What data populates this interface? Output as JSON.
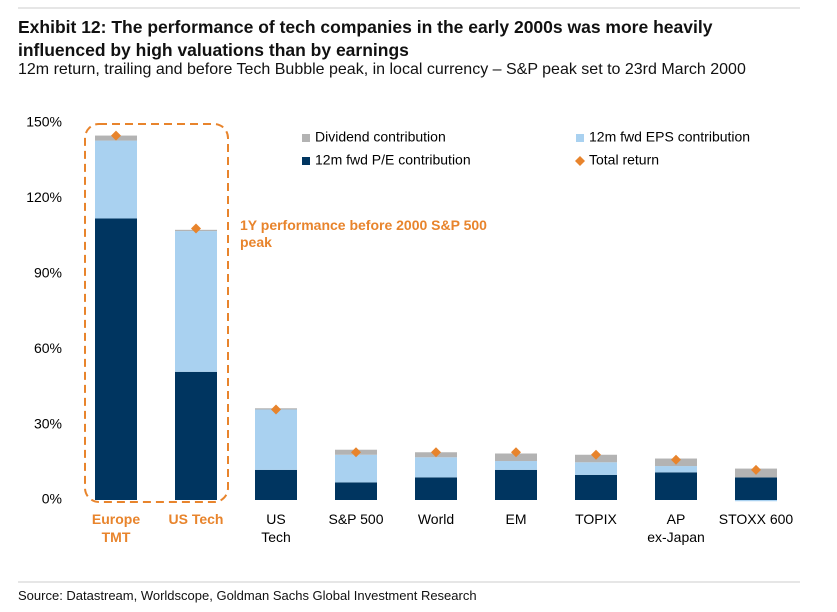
{
  "chart_data": {
    "type": "stacked_bar",
    "title": "Exhibit 12: The performance of tech companies in the early 2000s was more heavily influenced by high valuations than by earnings",
    "subtitle": "12m return, trailing and before Tech Bubble peak, in local currency – S&P peak set to 23rd March 2000",
    "source": "Source: Datastream, Worldscope, Goldman Sachs Global Investment Research",
    "annotation": "1Y performance before 2000 S&P 500 peak",
    "categories": [
      "Europe\nTMT",
      "US Tech",
      "US\nTech",
      "S&P 500",
      "World",
      "EM",
      "TOPIX",
      "AP\nex-Japan",
      "STOXX 600"
    ],
    "category_colors": [
      "#e8842c",
      "#e8842c",
      "#000000",
      "#000000",
      "#000000",
      "#000000",
      "#000000",
      "#000000",
      "#000000"
    ],
    "series": [
      {
        "name": "12m fwd P/E contribution",
        "color": "#003560",
        "values": [
          112,
          51,
          12,
          7,
          9,
          12,
          10,
          11,
          9
        ]
      },
      {
        "name": "12m fwd EPS contribution",
        "color": "#a9d1f0",
        "values": [
          31,
          56,
          24,
          11,
          8,
          3.5,
          5,
          2.5,
          -0.5
        ]
      },
      {
        "name": "Dividend contribution",
        "color": "#b3b3b3",
        "values": [
          2,
          0.5,
          0.5,
          2,
          2,
          3,
          3,
          3,
          3.5
        ]
      },
      {
        "name": "Total return",
        "type": "marker",
        "color": "#e8842c",
        "values": [
          145,
          108,
          36,
          19,
          19,
          19,
          18,
          16,
          12
        ]
      }
    ],
    "ylim": [
      0,
      150
    ],
    "yticks": [
      {
        "value": 0,
        "label": "0%"
      },
      {
        "value": 30,
        "label": "30%"
      },
      {
        "value": 60,
        "label": "60%"
      },
      {
        "value": 90,
        "label": "90%"
      },
      {
        "value": 120,
        "label": "120%"
      },
      {
        "value": 150,
        "label": "150%"
      }
    ],
    "grid": false
  }
}
